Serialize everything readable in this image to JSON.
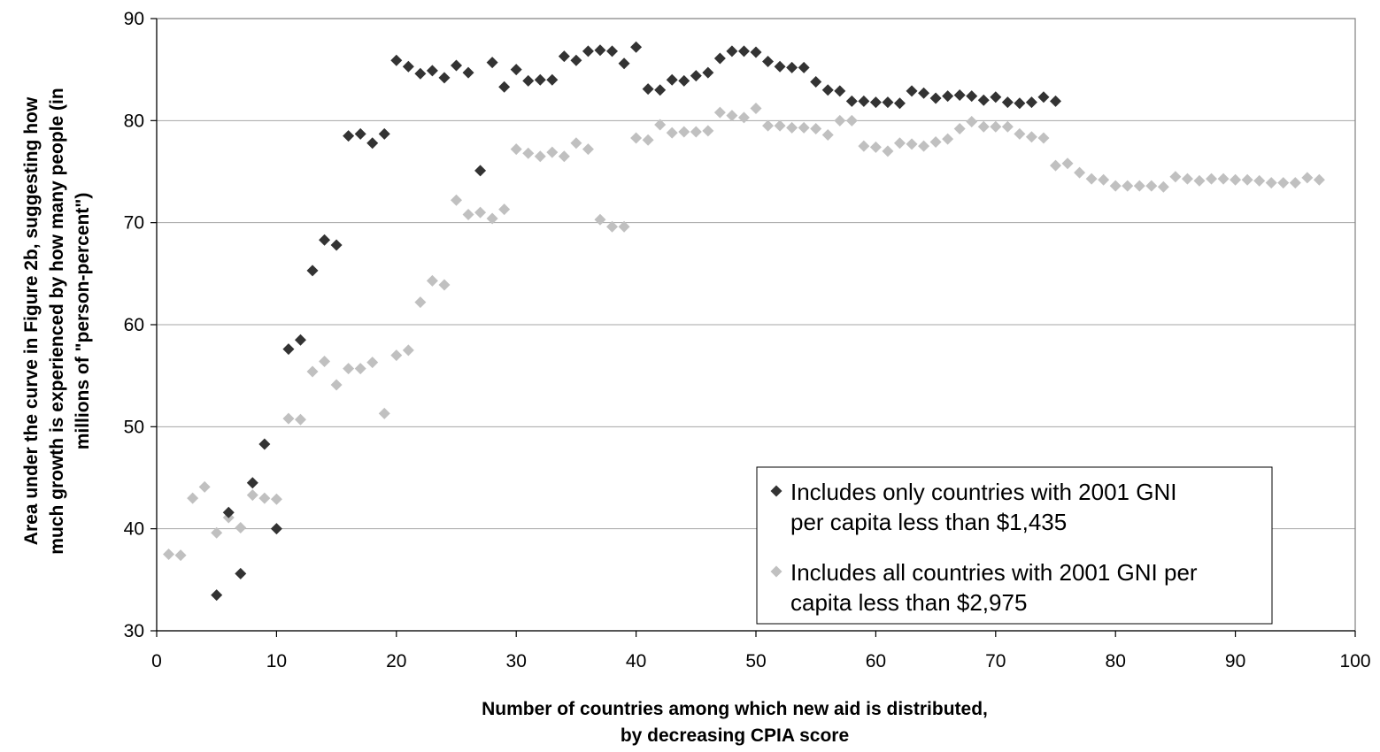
{
  "chart_data": {
    "type": "scatter",
    "xlabel": [
      "Number of countries among which new aid is distributed,",
      "by decreasing CPIA score"
    ],
    "ylabel": [
      "Area under the curve in Figure 2b, suggesting how",
      "much growth is experienced by how many people (in",
      "millions of \"person-percent\")"
    ],
    "xlim": [
      0,
      100
    ],
    "ylim": [
      30,
      90
    ],
    "xticks": [
      0,
      10,
      20,
      30,
      40,
      50,
      60,
      70,
      80,
      90,
      100
    ],
    "yticks": [
      30,
      40,
      50,
      60,
      70,
      80,
      90
    ],
    "grid": "horizontal",
    "legend_position": "bottom-right",
    "series": [
      {
        "name": "Includes only countries with 2001 GNI per capita less than $1,435",
        "legend_lines": [
          "Includes only countries with 2001 GNI",
          "per capita less than $1,435"
        ],
        "color": "#333333",
        "x": [
          5,
          6,
          7,
          8,
          9,
          10,
          11,
          12,
          13,
          14,
          15,
          16,
          17,
          18,
          19,
          20,
          21,
          22,
          23,
          24,
          25,
          26,
          27,
          28,
          29,
          30,
          31,
          32,
          33,
          34,
          35,
          36,
          37,
          38,
          39,
          40,
          41,
          42,
          43,
          44,
          45,
          46,
          47,
          48,
          49,
          50,
          51,
          52,
          53,
          54,
          55,
          56,
          57,
          58,
          59,
          60,
          61,
          62,
          63,
          64,
          65,
          66,
          67,
          68,
          69,
          70,
          71,
          72,
          73,
          74,
          75
        ],
        "y": [
          33.5,
          41.6,
          35.6,
          44.5,
          48.3,
          40.0,
          57.6,
          58.5,
          65.3,
          68.3,
          67.8,
          78.5,
          78.7,
          77.8,
          78.7,
          85.9,
          85.3,
          84.6,
          84.9,
          84.2,
          85.4,
          84.7,
          75.1,
          85.7,
          83.3,
          85.0,
          83.9,
          84.0,
          84.0,
          86.3,
          85.9,
          86.8,
          86.9,
          86.8,
          85.6,
          87.2,
          83.1,
          83.0,
          84.0,
          83.9,
          84.4,
          84.7,
          86.1,
          86.8,
          86.8,
          86.7,
          85.8,
          85.3,
          85.2,
          85.2,
          83.8,
          83.0,
          82.9,
          81.9,
          81.9,
          81.8,
          81.8,
          81.7,
          82.9,
          82.7,
          82.2,
          82.4,
          82.5,
          82.4,
          82.0,
          82.3,
          81.8,
          81.7,
          81.8,
          82.3,
          81.9
        ]
      },
      {
        "name": "Includes all countries with 2001 GNI per capita less than $2,975",
        "legend_lines": [
          "Includes all countries with 2001 GNI per",
          "capita less than $2,975"
        ],
        "color": "#c0c0c0",
        "x": [
          1,
          2,
          3,
          4,
          5,
          6,
          7,
          8,
          9,
          10,
          11,
          12,
          13,
          14,
          15,
          16,
          17,
          18,
          19,
          20,
          21,
          22,
          23,
          24,
          25,
          26,
          27,
          28,
          29,
          30,
          31,
          32,
          33,
          34,
          35,
          36,
          37,
          38,
          39,
          40,
          41,
          42,
          43,
          44,
          45,
          46,
          47,
          48,
          49,
          50,
          51,
          52,
          53,
          54,
          55,
          56,
          57,
          58,
          59,
          60,
          61,
          62,
          63,
          64,
          65,
          66,
          67,
          68,
          69,
          70,
          71,
          72,
          73,
          74,
          75,
          76,
          77,
          78,
          79,
          80,
          81,
          82,
          83,
          84,
          85,
          86,
          87,
          88,
          89,
          90,
          91,
          92,
          93,
          94,
          95,
          96,
          97
        ],
        "y": [
          37.5,
          37.4,
          43.0,
          44.1,
          39.6,
          41.1,
          40.1,
          43.3,
          43.0,
          42.9,
          50.8,
          50.7,
          55.4,
          56.4,
          54.1,
          55.7,
          55.7,
          56.3,
          51.3,
          57.0,
          57.5,
          62.2,
          64.3,
          63.9,
          72.2,
          70.8,
          71.0,
          70.4,
          71.3,
          77.2,
          76.8,
          76.5,
          76.9,
          76.5,
          77.8,
          77.2,
          70.3,
          69.6,
          69.6,
          78.3,
          78.1,
          79.6,
          78.8,
          78.9,
          78.9,
          79.0,
          80.8,
          80.5,
          80.3,
          81.2,
          79.5,
          79.5,
          79.3,
          79.3,
          79.2,
          78.6,
          80.0,
          80.0,
          77.5,
          77.4,
          77.0,
          77.8,
          77.7,
          77.5,
          77.9,
          78.2,
          79.2,
          79.9,
          79.4,
          79.4,
          79.4,
          78.7,
          78.4,
          78.3,
          75.6,
          75.8,
          74.9,
          74.3,
          74.2,
          73.6,
          73.6,
          73.6,
          73.6,
          73.5,
          74.5,
          74.3,
          74.1,
          74.3,
          74.3,
          74.2,
          74.2,
          74.1,
          73.9,
          73.9,
          73.9,
          74.4,
          74.2
        ]
      }
    ]
  }
}
